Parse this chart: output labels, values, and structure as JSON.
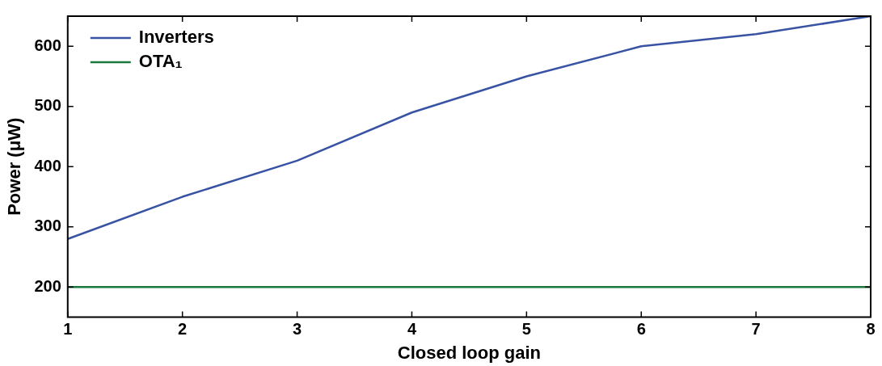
{
  "chart_data": {
    "type": "line",
    "xlabel": "Closed loop gain",
    "ylabel": "Power (μW)",
    "x": [
      1,
      2,
      3,
      4,
      5,
      6,
      7,
      8
    ],
    "series": [
      {
        "name": "Inverters",
        "color": "#3953a4",
        "values": [
          280,
          350,
          410,
          490,
          550,
          600,
          620,
          650
        ]
      },
      {
        "name": "OTA₁",
        "color": "#1a7a3e",
        "values": [
          200,
          200,
          200,
          200,
          200,
          200,
          200,
          200
        ]
      }
    ],
    "xlim": [
      1,
      8
    ],
    "xticks": [
      1,
      2,
      3,
      4,
      5,
      6,
      7,
      8
    ],
    "ylim": [
      150,
      650
    ],
    "yticks": [
      200,
      300,
      400,
      500,
      600
    ],
    "grid": false,
    "legend": "top left",
    "marker": "none",
    "line_style": "solid"
  }
}
